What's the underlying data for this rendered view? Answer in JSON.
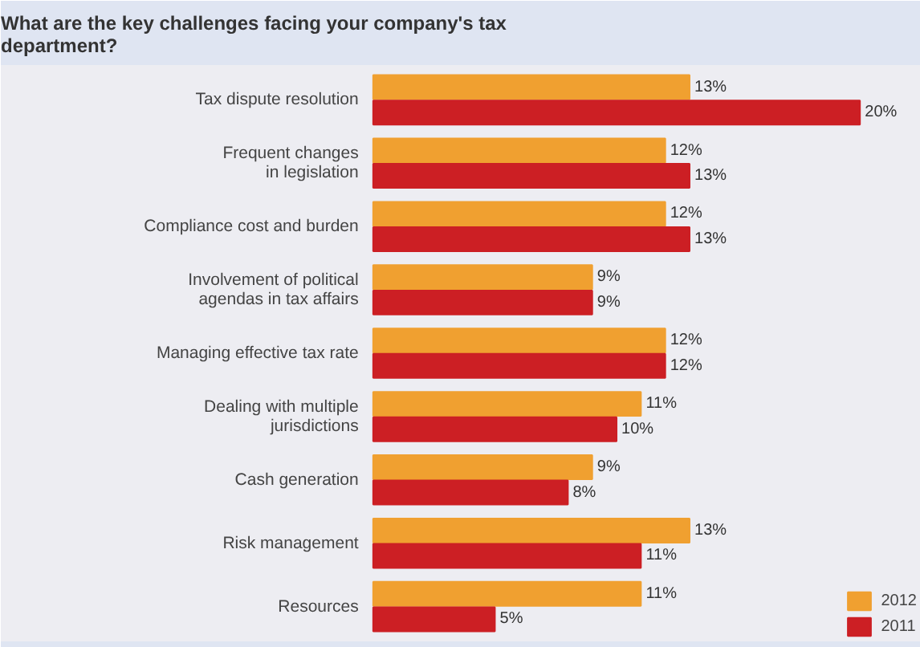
{
  "chart_data": {
    "type": "bar",
    "orientation": "horizontal",
    "title": "What are the key challenges facing your company's tax\ndepartment?",
    "categories": [
      "Tax dispute resolution",
      "Frequent changes\nin legislation",
      "Compliance cost and burden",
      "Involvement of political\nagendas in tax affairs",
      "Managing effective tax rate",
      "Dealing with multiple\njurisdictions",
      "Cash generation",
      "Risk management",
      "Resources"
    ],
    "series": [
      {
        "name": "2012",
        "color": "#f0a030",
        "values": [
          13,
          12,
          12,
          9,
          12,
          11,
          9,
          13,
          11
        ],
        "value_labels": [
          "13%",
          "12%",
          "12%",
          "9%",
          "12%",
          "11%",
          "9%",
          "13%",
          "11%"
        ]
      },
      {
        "name": "2011",
        "color": "#cc1f24",
        "values": [
          20,
          13,
          13,
          9,
          12,
          10,
          8,
          11,
          5
        ],
        "value_labels": [
          "20%",
          "13%",
          "13%",
          "9%",
          "12%",
          "10%",
          "8%",
          "11%",
          "5%"
        ]
      }
    ],
    "legend": "bottom right",
    "grid": false
  }
}
